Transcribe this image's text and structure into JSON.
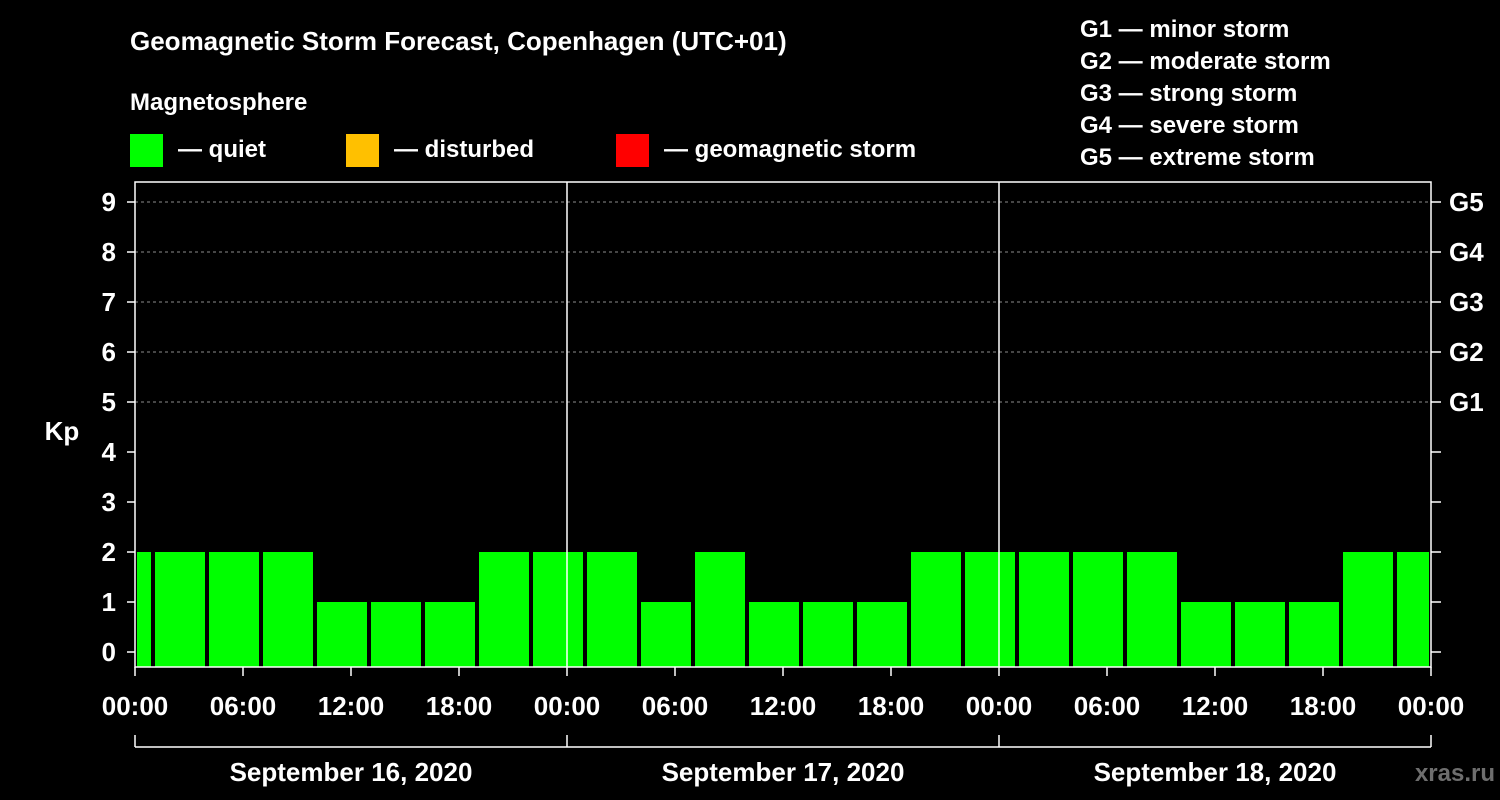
{
  "chart_data": {
    "type": "bar",
    "title": "Geomagnetic Storm Forecast, Copenhagen (UTC+01)",
    "legend_title": "Magnetosphere",
    "legend": [
      {
        "label": "— quiet",
        "color": "#00ff00"
      },
      {
        "label": "— disturbed",
        "color": "#ffc000"
      },
      {
        "label": "— geomagnetic storm",
        "color": "#ff0000"
      }
    ],
    "storm_scale": [
      "G1 — minor storm",
      "G2 — moderate storm",
      "G3 — strong storm",
      "G4 — severe storm",
      "G5 — extreme storm"
    ],
    "ylabel": "Kp",
    "ylim": [
      -0.3,
      9.4
    ],
    "y_ticks": [
      0,
      1,
      2,
      3,
      4,
      5,
      6,
      7,
      8,
      9
    ],
    "right_ticks": [
      {
        "value": 5,
        "label": "G1"
      },
      {
        "value": 6,
        "label": "G2"
      },
      {
        "value": 7,
        "label": "G3"
      },
      {
        "value": 8,
        "label": "G4"
      },
      {
        "value": 9,
        "label": "G5"
      }
    ],
    "x_range_hours": [
      0,
      72
    ],
    "x_ticks": [
      {
        "hour": 0,
        "label": "00:00"
      },
      {
        "hour": 6,
        "label": "06:00"
      },
      {
        "hour": 12,
        "label": "12:00"
      },
      {
        "hour": 18,
        "label": "18:00"
      },
      {
        "hour": 24,
        "label": "00:00"
      },
      {
        "hour": 30,
        "label": "06:00"
      },
      {
        "hour": 36,
        "label": "12:00"
      },
      {
        "hour": 42,
        "label": "18:00"
      },
      {
        "hour": 48,
        "label": "00:00"
      },
      {
        "hour": 54,
        "label": "06:00"
      },
      {
        "hour": 60,
        "label": "12:00"
      },
      {
        "hour": 66,
        "label": "18:00"
      },
      {
        "hour": 72,
        "label": "00:00"
      }
    ],
    "days": [
      "September 16, 2020",
      "September 17, 2020",
      "September 18, 2020"
    ],
    "bars": [
      {
        "start_hour": 0,
        "end_hour": 1,
        "value": 2,
        "status": "quiet"
      },
      {
        "start_hour": 1,
        "end_hour": 4,
        "value": 2,
        "status": "quiet"
      },
      {
        "start_hour": 4,
        "end_hour": 7,
        "value": 2,
        "status": "quiet"
      },
      {
        "start_hour": 7,
        "end_hour": 10,
        "value": 2,
        "status": "quiet"
      },
      {
        "start_hour": 10,
        "end_hour": 13,
        "value": 1,
        "status": "quiet"
      },
      {
        "start_hour": 13,
        "end_hour": 16,
        "value": 1,
        "status": "quiet"
      },
      {
        "start_hour": 16,
        "end_hour": 19,
        "value": 1,
        "status": "quiet"
      },
      {
        "start_hour": 19,
        "end_hour": 22,
        "value": 2,
        "status": "quiet"
      },
      {
        "start_hour": 22,
        "end_hour": 25,
        "value": 2,
        "status": "quiet"
      },
      {
        "start_hour": 25,
        "end_hour": 28,
        "value": 2,
        "status": "quiet"
      },
      {
        "start_hour": 28,
        "end_hour": 31,
        "value": 1,
        "status": "quiet"
      },
      {
        "start_hour": 31,
        "end_hour": 34,
        "value": 2,
        "status": "quiet"
      },
      {
        "start_hour": 34,
        "end_hour": 37,
        "value": 1,
        "status": "quiet"
      },
      {
        "start_hour": 37,
        "end_hour": 40,
        "value": 1,
        "status": "quiet"
      },
      {
        "start_hour": 40,
        "end_hour": 43,
        "value": 1,
        "status": "quiet"
      },
      {
        "start_hour": 43,
        "end_hour": 46,
        "value": 2,
        "status": "quiet"
      },
      {
        "start_hour": 46,
        "end_hour": 49,
        "value": 2,
        "status": "quiet"
      },
      {
        "start_hour": 49,
        "end_hour": 52,
        "value": 2,
        "status": "quiet"
      },
      {
        "start_hour": 52,
        "end_hour": 55,
        "value": 2,
        "status": "quiet"
      },
      {
        "start_hour": 55,
        "end_hour": 58,
        "value": 2,
        "status": "quiet"
      },
      {
        "start_hour": 58,
        "end_hour": 61,
        "value": 1,
        "status": "quiet"
      },
      {
        "start_hour": 61,
        "end_hour": 64,
        "value": 1,
        "status": "quiet"
      },
      {
        "start_hour": 64,
        "end_hour": 67,
        "value": 1,
        "status": "quiet"
      },
      {
        "start_hour": 67,
        "end_hour": 70,
        "value": 2,
        "status": "quiet"
      },
      {
        "start_hour": 70,
        "end_hour": 72,
        "value": 2,
        "status": "quiet"
      }
    ],
    "status_colors": {
      "quiet": "#00ff00",
      "disturbed": "#ffc000",
      "storm": "#ff0000"
    },
    "grid_lines_kp": [
      5,
      6,
      7,
      8,
      9
    ],
    "grid": true,
    "watermark": "xras.ru"
  }
}
